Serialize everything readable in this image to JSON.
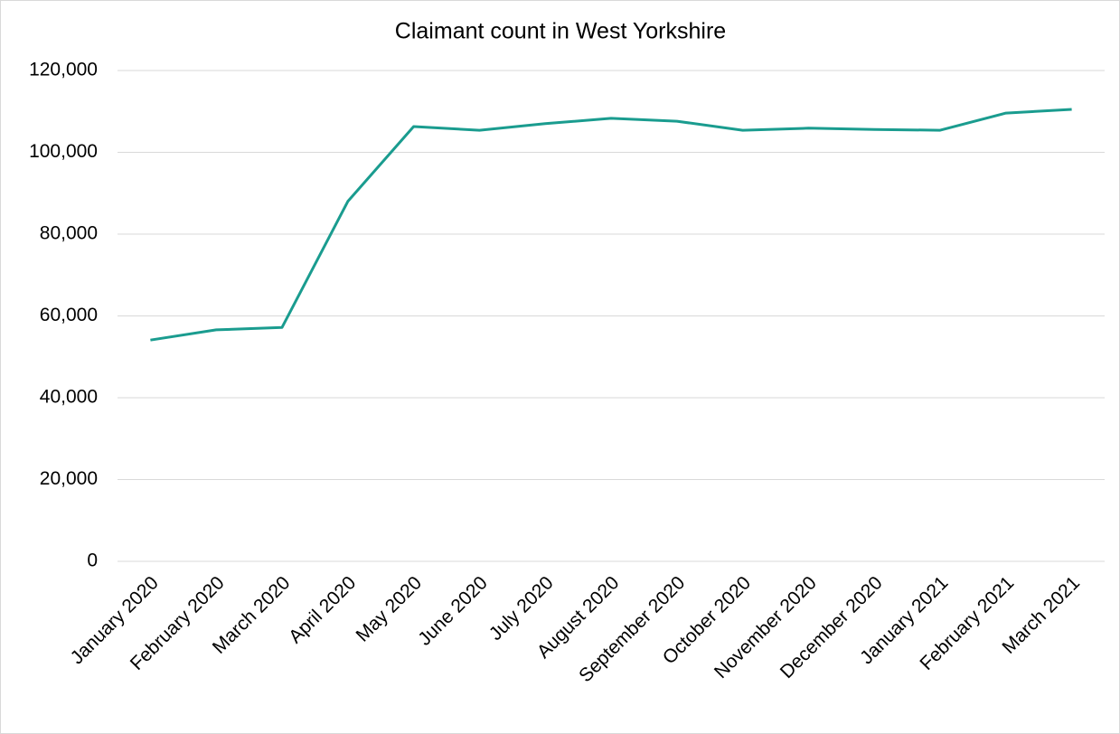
{
  "chart_data": {
    "type": "line",
    "title": "Claimant count in West Yorkshire",
    "categories": [
      "January 2020",
      "February 2020",
      "March 2020",
      "April 2020",
      "May 2020",
      "June 2020",
      "July 2020",
      "August 2020",
      "September 2020",
      "October 2020",
      "November 2020",
      "December 2020",
      "January 2021",
      "February 2021",
      "March 2021"
    ],
    "series": [
      {
        "name": "Claimant count",
        "color": "#1a9c8f",
        "values": [
          54100,
          56600,
          57200,
          88000,
          106300,
          105400,
          107000,
          108300,
          107600,
          105400,
          105900,
          105600,
          105400,
          109600,
          110500
        ]
      }
    ],
    "ylim": [
      0,
      120000
    ],
    "yticks": [
      0,
      {
        "value": 20000,
        "label": "20,000"
      },
      {
        "value": 40000,
        "label": "40,000"
      },
      {
        "value": 60000,
        "label": "60,000"
      },
      {
        "value": 80000,
        "label": "80,000"
      },
      {
        "value": 100000,
        "label": "100,000"
      },
      {
        "value": 120000,
        "label": "120,000"
      }
    ],
    "grid": true
  }
}
